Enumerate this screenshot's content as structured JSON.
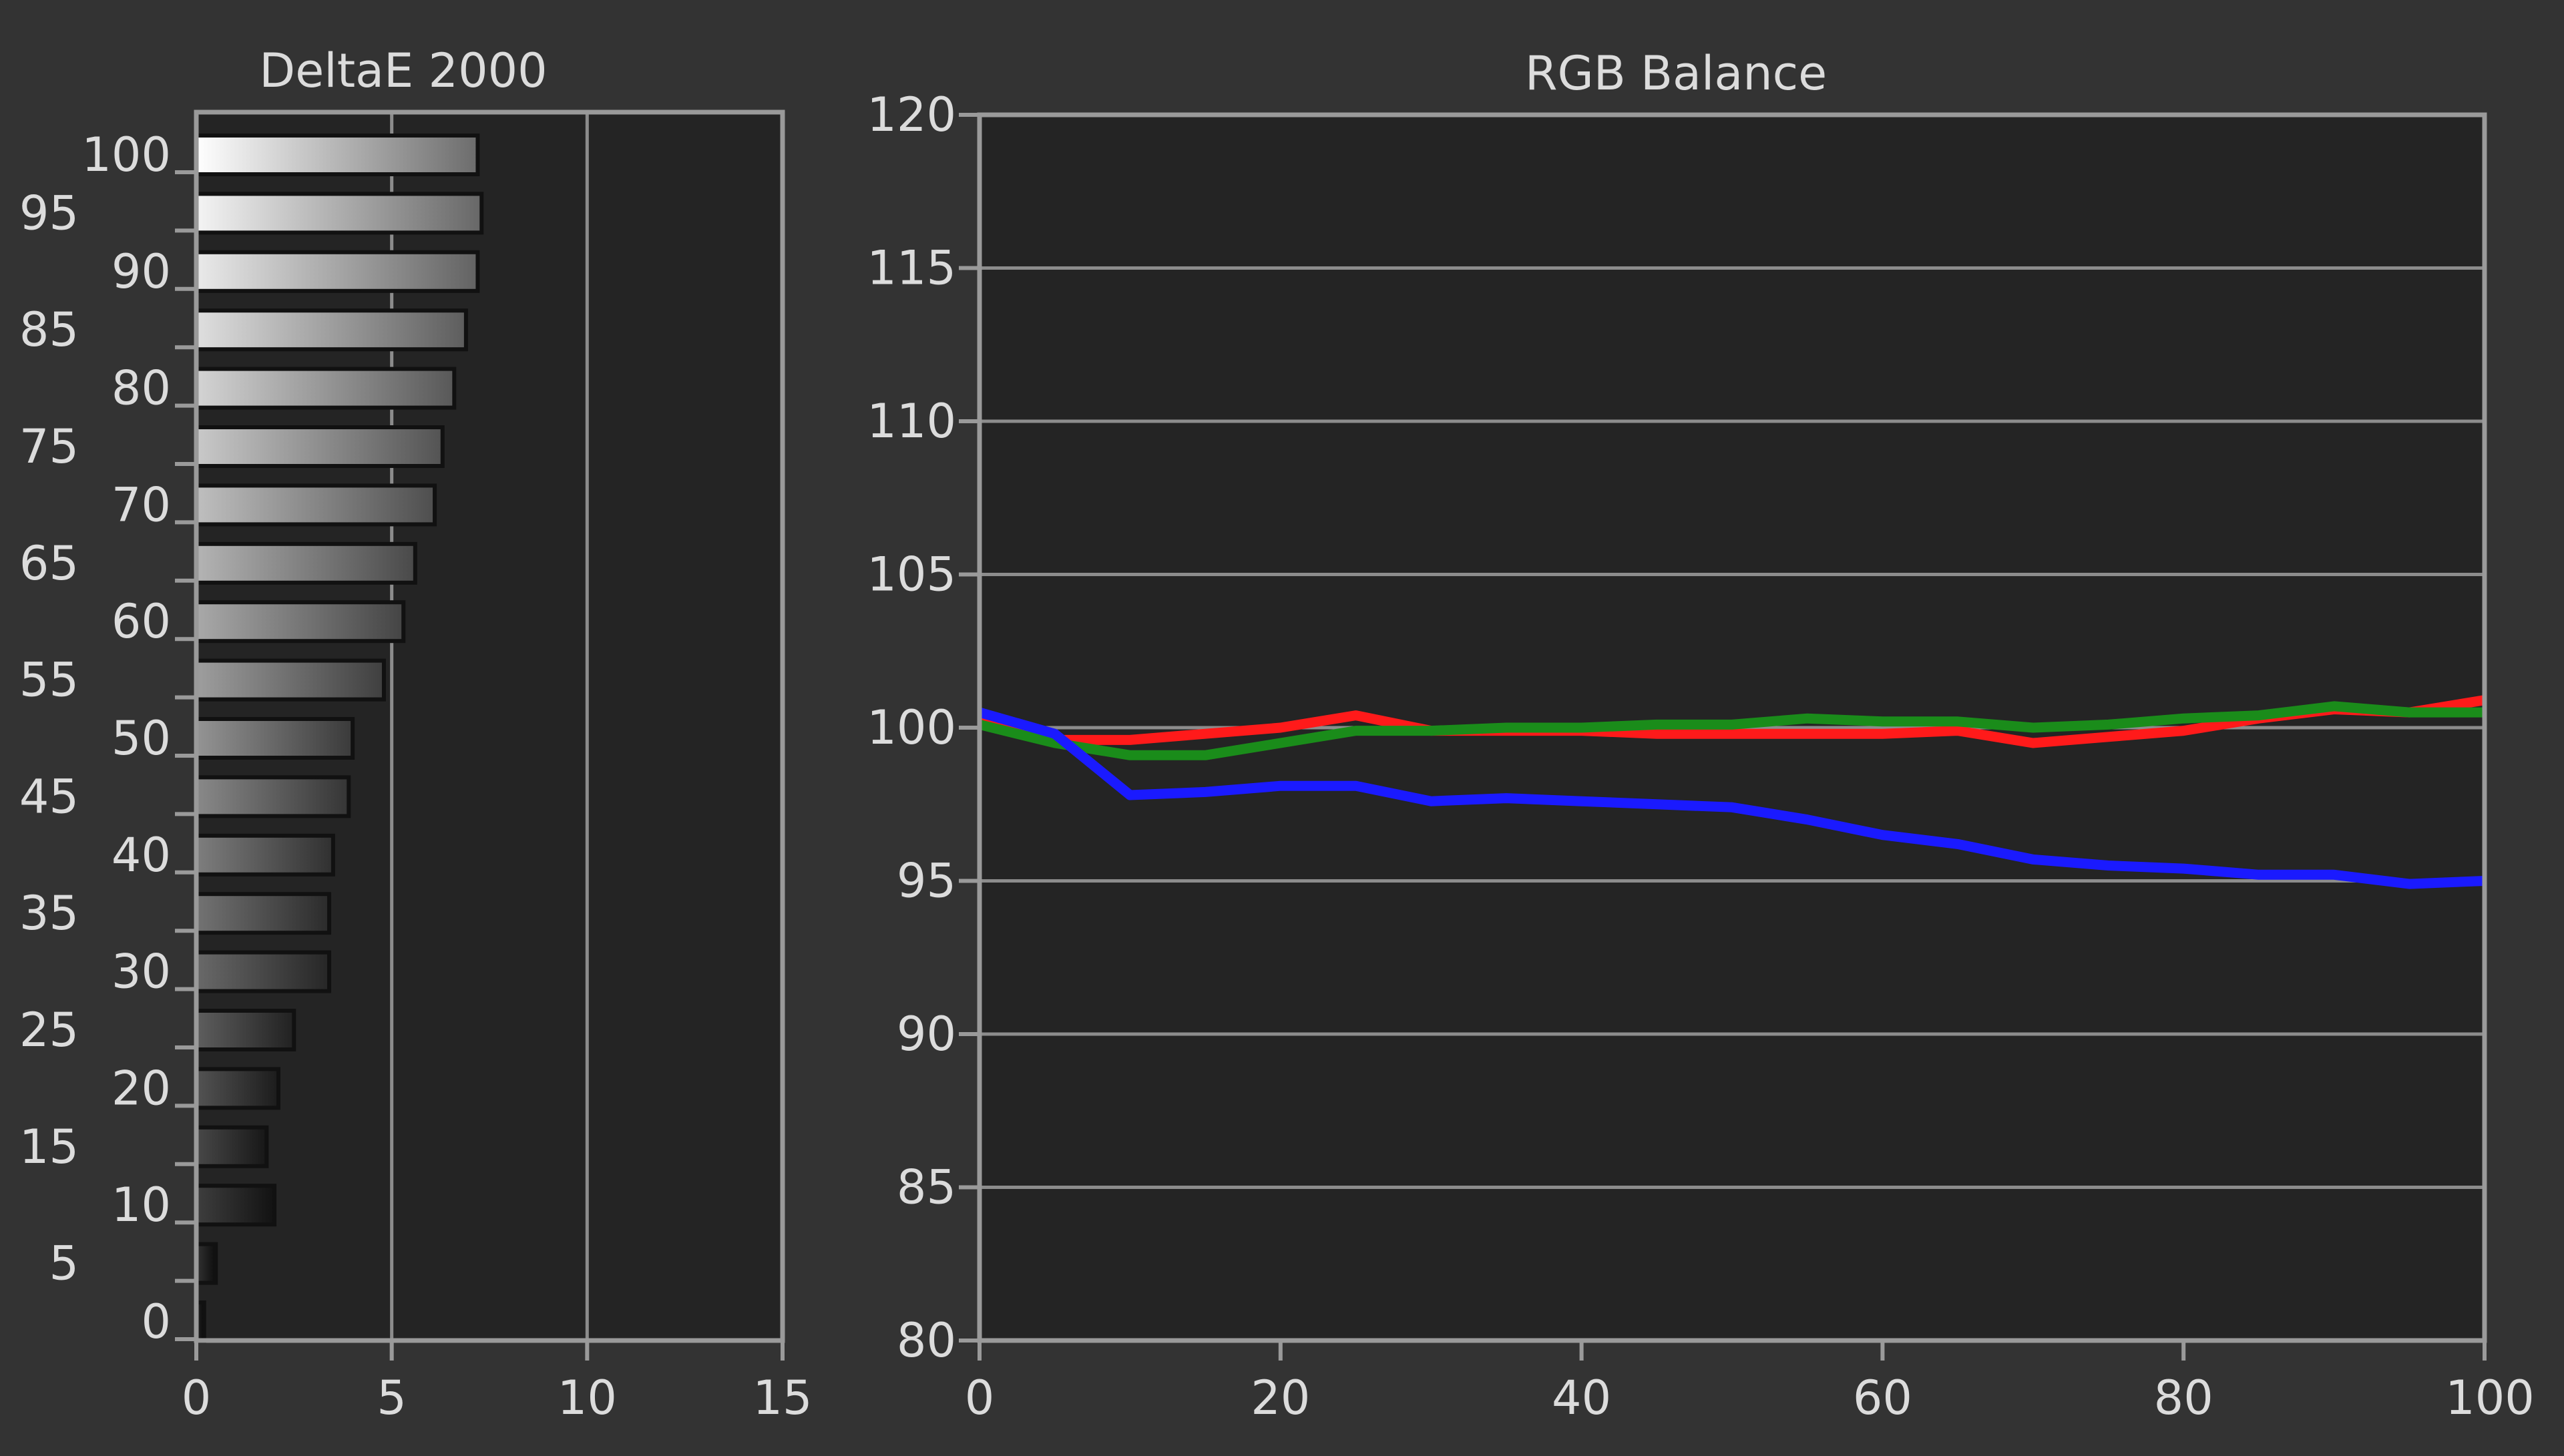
{
  "chart_data": [
    {
      "type": "bar",
      "orientation": "horizontal",
      "title": "DeltaE 2000",
      "categories": [
        0,
        5,
        10,
        15,
        20,
        25,
        30,
        35,
        40,
        45,
        50,
        55,
        60,
        65,
        70,
        75,
        80,
        85,
        90,
        95,
        100
      ],
      "values": [
        0.2,
        0.5,
        2.0,
        1.8,
        2.1,
        2.5,
        3.4,
        3.4,
        3.5,
        3.9,
        4.0,
        4.8,
        5.3,
        5.6,
        6.1,
        6.3,
        6.6,
        6.9,
        7.2,
        7.3,
        7.2
      ],
      "xticks": [
        0,
        5,
        10,
        15
      ],
      "yticks": [
        0,
        5,
        10,
        15,
        20,
        25,
        30,
        35,
        40,
        45,
        50,
        55,
        60,
        65,
        70,
        75,
        80,
        85,
        90,
        95,
        100
      ],
      "xlim": [
        0,
        15
      ],
      "grid": "vertical",
      "colors": {
        "grid": "#8c8c8c",
        "bar_outline": "#111111",
        "plot_bg": "#242424"
      }
    },
    {
      "type": "line",
      "title": "RGB Balance",
      "x": [
        0,
        5,
        10,
        15,
        20,
        25,
        30,
        35,
        40,
        45,
        50,
        55,
        60,
        65,
        70,
        75,
        80,
        85,
        90,
        95,
        100
      ],
      "xlim": [
        0,
        100
      ],
      "ylim": [
        80,
        120
      ],
      "xticks": [
        0,
        20,
        40,
        60,
        80,
        100
      ],
      "yticks": [
        80,
        85,
        90,
        95,
        100,
        105,
        110,
        115,
        120
      ],
      "grid": "horizontal",
      "series": [
        {
          "color": "#ff1a1a",
          "values": [
            100.2,
            99.6,
            99.6,
            99.8,
            100.0,
            100.4,
            99.9,
            99.9,
            99.9,
            99.8,
            99.8,
            99.8,
            99.8,
            99.9,
            99.5,
            99.7,
            99.9,
            100.3,
            100.6,
            100.5,
            100.9
          ]
        },
        {
          "color": "#1a8c1a",
          "values": [
            100.1,
            99.5,
            99.1,
            99.1,
            99.5,
            99.9,
            99.9,
            100.0,
            100.0,
            100.1,
            100.1,
            100.3,
            100.2,
            100.2,
            100.0,
            100.1,
            100.3,
            100.4,
            100.7,
            100.5,
            100.5
          ]
        },
        {
          "color": "#1a1aff",
          "values": [
            100.5,
            99.8,
            97.8,
            97.9,
            98.1,
            98.1,
            97.6,
            97.7,
            97.6,
            97.5,
            97.4,
            97.0,
            96.5,
            96.2,
            95.7,
            95.5,
            95.4,
            95.2,
            95.2,
            94.9,
            95.0
          ]
        }
      ],
      "colors": {
        "grid": "#8c8c8c",
        "plot_bg": "#242424"
      }
    }
  ]
}
